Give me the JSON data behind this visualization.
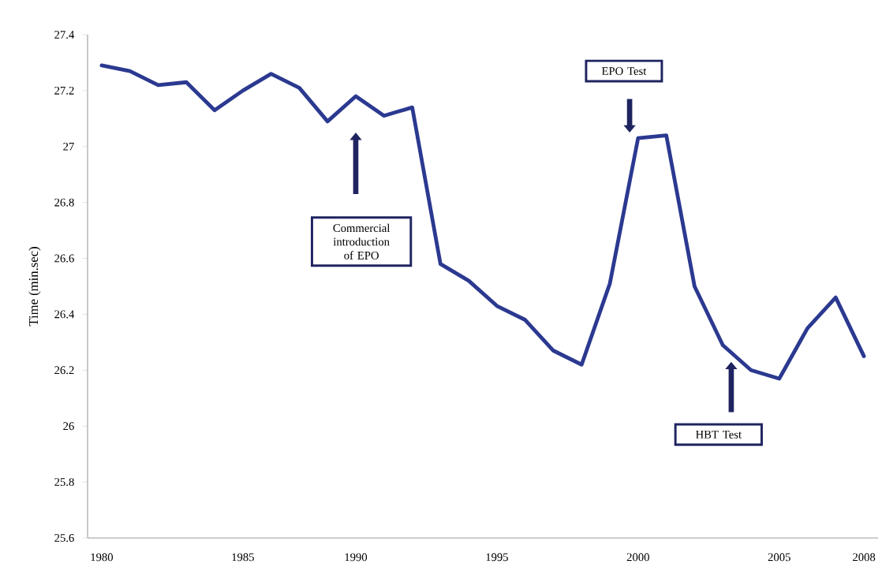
{
  "chart_data": {
    "type": "line",
    "ylabel": "Time (min.sec)",
    "categories": [
      "1980",
      null,
      null,
      null,
      null,
      "1985",
      null,
      null,
      null,
      "1990",
      null,
      null,
      null,
      null,
      "1995",
      null,
      null,
      null,
      null,
      "2000",
      null,
      null,
      null,
      null,
      "2005",
      null,
      null,
      "2008"
    ],
    "series": [
      {
        "color": "#2b3990",
        "values": [
          27.29,
          27.27,
          27.22,
          27.23,
          27.13,
          27.2,
          27.26,
          27.21,
          27.09,
          27.18,
          27.11,
          27.14,
          26.58,
          26.52,
          26.43,
          26.38,
          26.27,
          26.22,
          26.51,
          27.03,
          27.04,
          26.5,
          26.29,
          26.2,
          26.17,
          26.35,
          26.46,
          26.25
        ]
      }
    ],
    "ylim": [
      25.6,
      27.4
    ],
    "yticks": [
      25.6,
      25.8,
      26,
      26.2,
      26.4,
      26.6,
      26.8,
      27,
      27.2,
      27.4
    ],
    "marker": "none",
    "line_style": "solid",
    "annotations": [
      "Commercial introduction of EPO",
      "EPO Test",
      "HBT Test"
    ]
  }
}
